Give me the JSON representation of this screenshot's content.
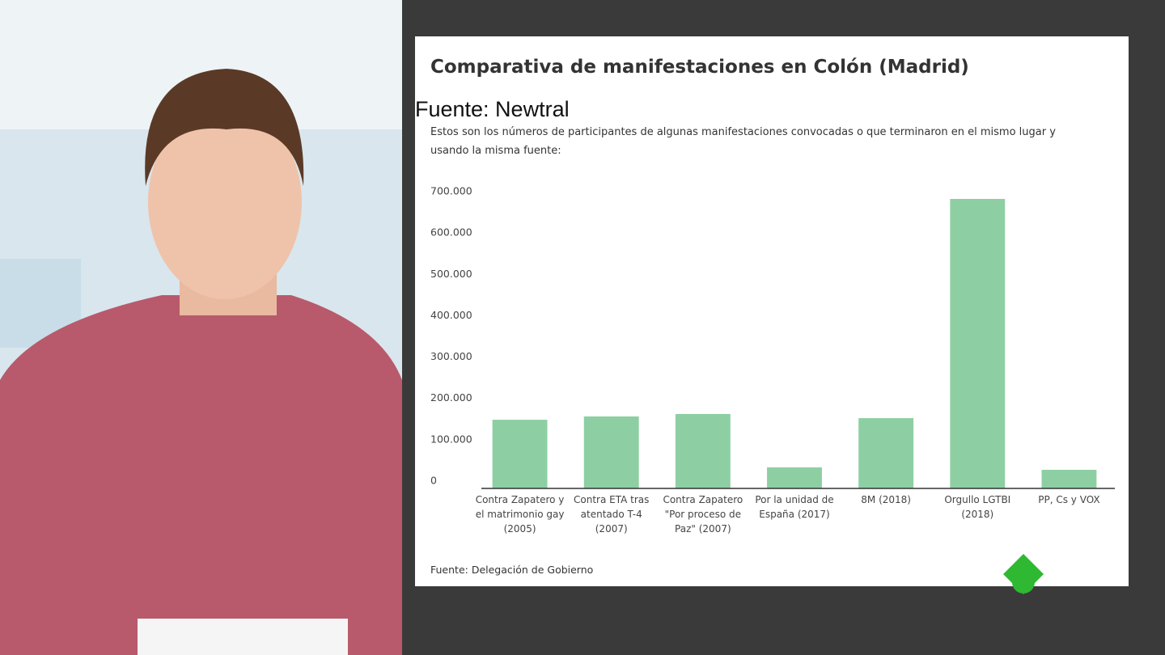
{
  "chart_data": {
    "type": "bar",
    "title": "Comparativa de manifestaciones en Colón (Madrid)",
    "subtitle": "Estos son los números de participantes de algunas manifestaciones convocadas o que terminaron en el mismo lugar y usando la misma fuente:",
    "source": "Fuente: Delegación de Gobierno",
    "categories": [
      "Contra Zapatero y el matrimonio gay (2005)",
      "Contra ETA tras atentado T-4 (2007)",
      "Contra Zapatero \"Por proceso de Paz\" (2007)",
      "Por la unidad de España (2017)",
      "8M (2018)",
      "Orgullo LGTBI (2018)",
      "PP, Cs y VOX"
    ],
    "values": [
      166000,
      174000,
      180000,
      51000,
      170000,
      700000,
      45000
    ],
    "color": "#8dcfa3",
    "ylim": [
      0,
      700000
    ],
    "yticks": [
      0,
      {
        "value": 100000,
        "label": "100.000"
      },
      {
        "value": 200000,
        "label": "200.000"
      },
      {
        "value": 300000,
        "label": "300.000"
      },
      {
        "value": 400000,
        "label": "400.000"
      },
      {
        "value": 500000,
        "label": "500.000"
      },
      {
        "value": 600000,
        "label": "600.000"
      },
      {
        "value": 700000,
        "label": "700.000"
      }
    ],
    "grid": false
  },
  "overlay": {
    "caption": "Fuente: Newtral"
  }
}
